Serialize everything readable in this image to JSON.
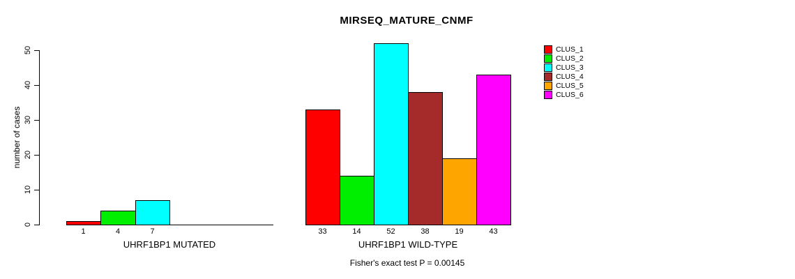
{
  "chart_data": {
    "type": "bar",
    "title": "MIRSEQ_MATURE_CNMF",
    "ylabel": "number of cases",
    "xlabel": "",
    "ylim": [
      0,
      50
    ],
    "yticks": [
      0,
      10,
      20,
      30,
      40,
      50
    ],
    "grid": false,
    "legend_position": "right-outside",
    "legend": [
      {
        "label": "CLUS_1",
        "color": "#FF0000"
      },
      {
        "label": "CLUS_2",
        "color": "#00EE00"
      },
      {
        "label": "CLUS_3",
        "color": "#00FFFF"
      },
      {
        "label": "CLUS_4",
        "color": "#A52A2A"
      },
      {
        "label": "CLUS_5",
        "color": "#FFA500"
      },
      {
        "label": "CLUS_6",
        "color": "#FF00FF"
      }
    ],
    "groups": [
      {
        "label": "UHRF1BP1 MUTATED",
        "values": [
          1,
          4,
          7,
          0,
          0,
          0
        ],
        "bar_labels": [
          "1",
          "4",
          "7",
          "",
          "",
          ""
        ]
      },
      {
        "label": "UHRF1BP1 WILD-TYPE",
        "values": [
          33,
          14,
          52,
          38,
          19,
          43
        ],
        "bar_labels": [
          "33",
          "14",
          "52",
          "38",
          "19",
          "43"
        ]
      }
    ],
    "annotation": "Fisher's exact test P = 0.00145"
  }
}
